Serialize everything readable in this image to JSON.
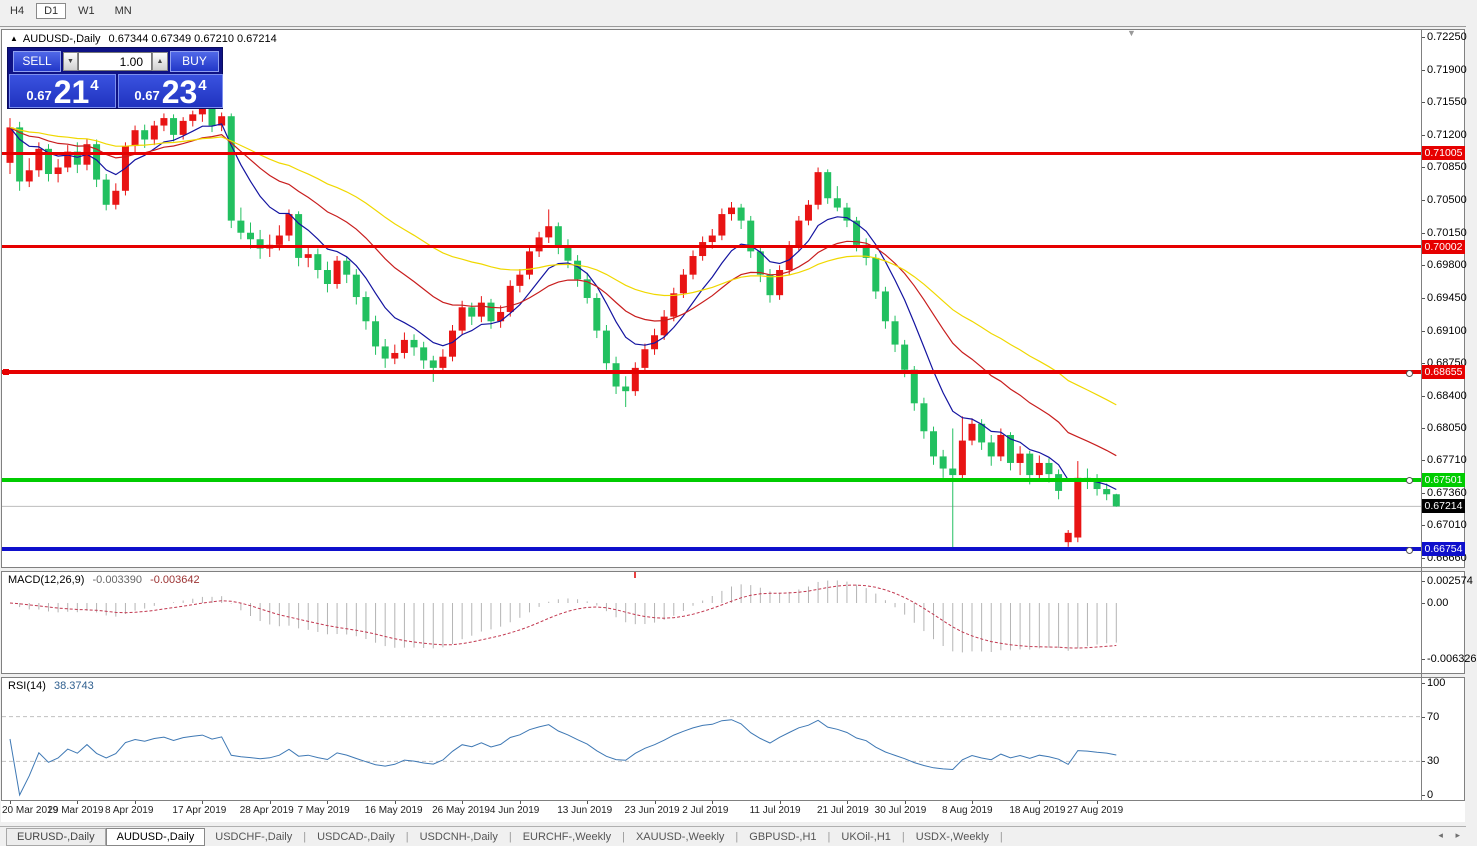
{
  "toolbar": {
    "timeframes": [
      {
        "label": "H4",
        "active": false
      },
      {
        "label": "D1",
        "active": true
      },
      {
        "label": "W1",
        "active": false
      },
      {
        "label": "MN",
        "active": false
      }
    ]
  },
  "chart_header": {
    "collapse_icon": "up-triangle-icon",
    "symbol": "AUDUSD-,Daily",
    "ohlc_text": "0.67344 0.67349 0.67210 0.67214"
  },
  "trade_panel": {
    "sell_label": "SELL",
    "buy_label": "BUY",
    "volume": "1.00",
    "spin_down_icon": "down-arrow-icon",
    "spin_up_icon": "up-arrow-icon",
    "sell_price": {
      "prefix": "0.67",
      "big": "21",
      "sup": "4"
    },
    "buy_price": {
      "prefix": "0.67",
      "big": "23",
      "sup": "4"
    }
  },
  "macd_panel": {
    "name": "MACD(12,26,9)",
    "value_main": "-0.003390",
    "value_signal": "-0.003642",
    "axis": [
      "0.002574",
      "0.00",
      "-0.006326"
    ]
  },
  "rsi_panel": {
    "name": "RSI(14)",
    "value": "38.3743",
    "axis": [
      "100",
      "70",
      "30",
      "0"
    ]
  },
  "price_axis": {
    "ticks": [
      "0.72250",
      "0.71900",
      "0.71550",
      "0.71200",
      "0.70850",
      "0.70500",
      "0.70150",
      "0.69800",
      "0.69450",
      "0.69100",
      "0.68750",
      "0.68400",
      "0.68050",
      "0.67710",
      "0.67360",
      "0.67010",
      "0.66660"
    ],
    "current": {
      "price": 0.67214,
      "label": "0.67214",
      "bg": "#000000"
    }
  },
  "chart_data": {
    "type": "candlestick",
    "symbol": "AUDUSD-",
    "timeframe": "Daily",
    "last_ohlc": {
      "open": 0.67344,
      "high": 0.67349,
      "low": 0.6721,
      "close": 0.67214
    },
    "ylim": [
      0.6656,
      0.7228
    ],
    "up_color": "#e81414",
    "down_color": "#22c060",
    "ohlc": [
      [
        0.709,
        0.7138,
        0.7078,
        0.7128
      ],
      [
        0.7128,
        0.7134,
        0.706,
        0.707
      ],
      [
        0.707,
        0.7095,
        0.7064,
        0.7082
      ],
      [
        0.7082,
        0.7112,
        0.7075,
        0.7105
      ],
      [
        0.7105,
        0.711,
        0.707,
        0.7078
      ],
      [
        0.7078,
        0.7094,
        0.7069,
        0.7085
      ],
      [
        0.7085,
        0.7109,
        0.708,
        0.7102
      ],
      [
        0.7102,
        0.7112,
        0.7079,
        0.7088
      ],
      [
        0.7088,
        0.7116,
        0.7082,
        0.711
      ],
      [
        0.711,
        0.7115,
        0.7064,
        0.7072
      ],
      [
        0.7072,
        0.7078,
        0.7039,
        0.7045
      ],
      [
        0.7045,
        0.7068,
        0.704,
        0.706
      ],
      [
        0.706,
        0.7112,
        0.7055,
        0.7108
      ],
      [
        0.7108,
        0.713,
        0.7101,
        0.7125
      ],
      [
        0.7125,
        0.7131,
        0.7106,
        0.7115
      ],
      [
        0.7115,
        0.7135,
        0.7109,
        0.713
      ],
      [
        0.713,
        0.7143,
        0.7124,
        0.7138
      ],
      [
        0.7138,
        0.7142,
        0.7113,
        0.712
      ],
      [
        0.712,
        0.7139,
        0.7115,
        0.7135
      ],
      [
        0.7135,
        0.7146,
        0.7129,
        0.7142
      ],
      [
        0.7142,
        0.715,
        0.7134,
        0.7148
      ],
      [
        0.7148,
        0.7151,
        0.7123,
        0.713
      ],
      [
        0.713,
        0.7144,
        0.7124,
        0.714
      ],
      [
        0.714,
        0.7143,
        0.702,
        0.7028
      ],
      [
        0.7028,
        0.7042,
        0.7008,
        0.7015
      ],
      [
        0.7015,
        0.7026,
        0.6998,
        0.7008
      ],
      [
        0.7008,
        0.7018,
        0.6987,
        0.6998
      ],
      [
        0.6998,
        0.7013,
        0.6989,
        0.7002
      ],
      [
        0.7002,
        0.7023,
        0.6996,
        0.7012
      ],
      [
        0.7012,
        0.704,
        0.7006,
        0.7035
      ],
      [
        0.7035,
        0.7038,
        0.6979,
        0.6988
      ],
      [
        0.6988,
        0.7001,
        0.6978,
        0.6992
      ],
      [
        0.6992,
        0.6998,
        0.6966,
        0.6975
      ],
      [
        0.6975,
        0.6984,
        0.6951,
        0.696
      ],
      [
        0.696,
        0.699,
        0.6955,
        0.6985
      ],
      [
        0.6985,
        0.6989,
        0.6961,
        0.697
      ],
      [
        0.697,
        0.6976,
        0.6938,
        0.6946
      ],
      [
        0.6946,
        0.6952,
        0.6911,
        0.692
      ],
      [
        0.692,
        0.6926,
        0.6884,
        0.6893
      ],
      [
        0.6893,
        0.6901,
        0.687,
        0.688
      ],
      [
        0.688,
        0.6895,
        0.6874,
        0.6886
      ],
      [
        0.6886,
        0.6908,
        0.688,
        0.69
      ],
      [
        0.69,
        0.6906,
        0.6883,
        0.6892
      ],
      [
        0.6892,
        0.6898,
        0.6869,
        0.6878
      ],
      [
        0.6878,
        0.6883,
        0.6855,
        0.687
      ],
      [
        0.687,
        0.689,
        0.6864,
        0.6882
      ],
      [
        0.6882,
        0.6916,
        0.6877,
        0.691
      ],
      [
        0.691,
        0.6942,
        0.6905,
        0.6935
      ],
      [
        0.6935,
        0.694,
        0.6916,
        0.6925
      ],
      [
        0.6925,
        0.6947,
        0.6919,
        0.694
      ],
      [
        0.694,
        0.6944,
        0.6912,
        0.692
      ],
      [
        0.692,
        0.6937,
        0.6913,
        0.693
      ],
      [
        0.693,
        0.6964,
        0.6925,
        0.6958
      ],
      [
        0.6958,
        0.6976,
        0.6951,
        0.697
      ],
      [
        0.697,
        0.7001,
        0.6965,
        0.6995
      ],
      [
        0.6995,
        0.7016,
        0.6989,
        0.701
      ],
      [
        0.701,
        0.704,
        0.7004,
        0.7022
      ],
      [
        0.7022,
        0.7026,
        0.6992,
        0.7
      ],
      [
        0.7,
        0.7008,
        0.6977,
        0.6985
      ],
      [
        0.6985,
        0.6991,
        0.6957,
        0.6965
      ],
      [
        0.6965,
        0.6972,
        0.6939,
        0.6945
      ],
      [
        0.6945,
        0.695,
        0.6902,
        0.691
      ],
      [
        0.691,
        0.6916,
        0.6868,
        0.6875
      ],
      [
        0.6875,
        0.6882,
        0.6842,
        0.685
      ],
      [
        0.685,
        0.6861,
        0.6828,
        0.6845
      ],
      [
        0.6845,
        0.6876,
        0.684,
        0.687
      ],
      [
        0.687,
        0.6896,
        0.6865,
        0.689
      ],
      [
        0.689,
        0.6912,
        0.6884,
        0.6905
      ],
      [
        0.6905,
        0.6932,
        0.69,
        0.6925
      ],
      [
        0.6925,
        0.6956,
        0.692,
        0.695
      ],
      [
        0.695,
        0.6976,
        0.6945,
        0.697
      ],
      [
        0.697,
        0.6996,
        0.6965,
        0.699
      ],
      [
        0.699,
        0.7011,
        0.6985,
        0.7005
      ],
      [
        0.7005,
        0.7019,
        0.6998,
        0.7012
      ],
      [
        0.7012,
        0.7041,
        0.7007,
        0.7035
      ],
      [
        0.7035,
        0.7048,
        0.7028,
        0.7042
      ],
      [
        0.7042,
        0.7046,
        0.7019,
        0.7028
      ],
      [
        0.7028,
        0.7033,
        0.6988,
        0.6995
      ],
      [
        0.6995,
        0.7,
        0.6962,
        0.697
      ],
      [
        0.697,
        0.6976,
        0.694,
        0.6948
      ],
      [
        0.6948,
        0.698,
        0.6943,
        0.6975
      ],
      [
        0.6975,
        0.7006,
        0.697,
        0.7
      ],
      [
        0.7,
        0.7033,
        0.6995,
        0.7028
      ],
      [
        0.7028,
        0.705,
        0.7023,
        0.7045
      ],
      [
        0.7045,
        0.7085,
        0.704,
        0.708
      ],
      [
        0.708,
        0.7083,
        0.7046,
        0.7052
      ],
      [
        0.7052,
        0.7065,
        0.7038,
        0.7042
      ],
      [
        0.7042,
        0.7047,
        0.7021,
        0.7028
      ],
      [
        0.7028,
        0.7032,
        0.6995,
        0.7002
      ],
      [
        0.7002,
        0.7009,
        0.698,
        0.6988
      ],
      [
        0.6988,
        0.6992,
        0.6944,
        0.6952
      ],
      [
        0.6952,
        0.6957,
        0.6912,
        0.692
      ],
      [
        0.692,
        0.6926,
        0.6887,
        0.6895
      ],
      [
        0.6895,
        0.69,
        0.686,
        0.6868
      ],
      [
        0.6868,
        0.6872,
        0.6824,
        0.6832
      ],
      [
        0.6832,
        0.6838,
        0.6794,
        0.6802
      ],
      [
        0.6802,
        0.6807,
        0.6766,
        0.6775
      ],
      [
        0.6775,
        0.6782,
        0.6752,
        0.6762
      ],
      [
        0.6762,
        0.6805,
        0.6677,
        0.6755
      ],
      [
        0.6755,
        0.6818,
        0.675,
        0.6792
      ],
      [
        0.6792,
        0.6816,
        0.6787,
        0.681
      ],
      [
        0.681,
        0.6815,
        0.6782,
        0.679
      ],
      [
        0.679,
        0.6798,
        0.6765,
        0.6775
      ],
      [
        0.6775,
        0.6805,
        0.677,
        0.6798
      ],
      [
        0.6798,
        0.6801,
        0.676,
        0.6768
      ],
      [
        0.6768,
        0.6786,
        0.6755,
        0.6778
      ],
      [
        0.6778,
        0.6781,
        0.6745,
        0.6755
      ],
      [
        0.6755,
        0.6776,
        0.6748,
        0.6768
      ],
      [
        0.6768,
        0.6773,
        0.6747,
        0.6756
      ],
      [
        0.6756,
        0.6761,
        0.6729,
        0.6738
      ],
      [
        0.6683,
        0.6696,
        0.6678,
        0.6693
      ],
      [
        0.6688,
        0.677,
        0.6683,
        0.6752
      ],
      [
        0.6752,
        0.6762,
        0.674,
        0.6748
      ],
      [
        0.6748,
        0.6756,
        0.6733,
        0.674
      ],
      [
        0.674,
        0.6746,
        0.6728,
        0.67344
      ],
      [
        0.67344,
        0.67349,
        0.6721,
        0.67214
      ]
    ],
    "date_labels": [
      {
        "text": "20 Mar 2019",
        "i": 0
      },
      {
        "text": "29 Mar 2019",
        "i": 7
      },
      {
        "text": "8 Apr 2019",
        "i": 13
      },
      {
        "text": "17 Apr 2019",
        "i": 20
      },
      {
        "text": "28 Apr 2019",
        "i": 27
      },
      {
        "text": "7 May 2019",
        "i": 33
      },
      {
        "text": "16 May 2019",
        "i": 40
      },
      {
        "text": "26 May 2019",
        "i": 47
      },
      {
        "text": "4 Jun 2019",
        "i": 53
      },
      {
        "text": "13 Jun 2019",
        "i": 60
      },
      {
        "text": "23 Jun 2019",
        "i": 67
      },
      {
        "text": "2 Jul 2019",
        "i": 73
      },
      {
        "text": "11 Jul 2019",
        "i": 80
      },
      {
        "text": "21 Jul 2019",
        "i": 87
      },
      {
        "text": "30 Jul 2019",
        "i": 93
      },
      {
        "text": "8 Aug 2019",
        "i": 100
      },
      {
        "text": "18 Aug 2019",
        "i": 107
      },
      {
        "text": "27 Aug 2019",
        "i": 113
      }
    ],
    "overlays": [
      {
        "name": "ema-fast",
        "period": 8,
        "color": "#1414a0"
      },
      {
        "name": "ema-mid",
        "period": 20,
        "color": "#c81e1e"
      },
      {
        "name": "ema-slow",
        "period": 40,
        "color": "#f0d800"
      }
    ],
    "hlines": [
      {
        "price": 0.71005,
        "label": "0.71005",
        "color": "#e60000",
        "thickness": 3,
        "left_handle": false,
        "right_handle": false
      },
      {
        "price": 0.70002,
        "label": "0.70002",
        "color": "#e60000",
        "thickness": 3,
        "left_handle": false,
        "right_handle": false
      },
      {
        "price": 0.68655,
        "label": "0.68655",
        "color": "#e60000",
        "thickness": 4,
        "left_handle": true,
        "right_handle": true
      },
      {
        "price": 0.67501,
        "label": "0.67501",
        "color": "#00cc00",
        "thickness": 4,
        "left_handle": false,
        "right_handle": true
      },
      {
        "price": 0.66754,
        "label": "0.66754",
        "color": "#0f10cc",
        "thickness": 4,
        "left_handle": false,
        "right_handle": true
      }
    ],
    "current_price_line": {
      "price": 0.67214,
      "color": "#bdbdbd"
    },
    "indicators": [
      {
        "type": "macd",
        "fast": 12,
        "slow": 26,
        "signal": 9,
        "hist_color": "#b4b4b4",
        "signal_color": "#c23850",
        "last_main": -0.00339,
        "last_signal": -0.003642
      },
      {
        "type": "rsi",
        "period": 14,
        "color": "#3e78b4",
        "levels": [
          70,
          30
        ],
        "last_value": 38.3743
      }
    ]
  },
  "tabs": {
    "items": [
      {
        "label": "EURUSD-,Daily",
        "active": false,
        "boxed": true
      },
      {
        "label": "AUDUSD-,Daily",
        "active": true,
        "boxed": false
      },
      {
        "label": "USDCHF-,Daily",
        "active": false,
        "boxed": false
      },
      {
        "label": "USDCAD-,Daily",
        "active": false,
        "boxed": false
      },
      {
        "label": "USDCNH-,Daily",
        "active": false,
        "boxed": false
      },
      {
        "label": "EURCHF-,Weekly",
        "active": false,
        "boxed": false
      },
      {
        "label": "XAUUSD-,Weekly",
        "active": false,
        "boxed": false
      },
      {
        "label": "GBPUSD-,H1",
        "active": false,
        "boxed": false
      },
      {
        "label": "UKOil-,H1",
        "active": false,
        "boxed": false
      },
      {
        "label": "USDX-,Weekly",
        "active": false,
        "boxed": false
      }
    ],
    "scroll_left_icon": "left-arrow-icon",
    "scroll_right_icon": "right-arrow-icon"
  }
}
